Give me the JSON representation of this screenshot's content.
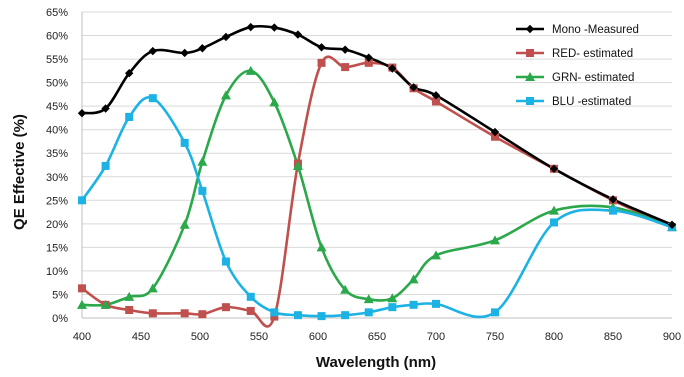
{
  "chart_data": {
    "type": "line",
    "xlabel": "Wavelength (nm)",
    "ylabel": "QE Effective (%)",
    "xlim": [
      400,
      900
    ],
    "ylim": [
      0,
      65
    ],
    "x_ticks": [
      "400",
      "450",
      "500",
      "550",
      "600",
      "650",
      "700",
      "750",
      "800",
      "850",
      "900"
    ],
    "y_ticks": [
      "0%",
      "5%",
      "10%",
      "15%",
      "20%",
      "25%",
      "30%",
      "35%",
      "40%",
      "45%",
      "50%",
      "55%",
      "60%",
      "65%"
    ],
    "grid": "horizontal",
    "legend_position": "top-right",
    "series": [
      {
        "name": "Mono -Measured",
        "color": "#000000",
        "marker": "diamond",
        "x": [
          400,
          420,
          440,
          460,
          487,
          502,
          522,
          543,
          563,
          583,
          603,
          623,
          643,
          663,
          681,
          700,
          750,
          800,
          850,
          900
        ],
        "y": [
          43.5,
          44.5,
          52,
          56.7,
          56.3,
          57.3,
          59.7,
          61.8,
          61.7,
          60.2,
          57.5,
          57,
          55.3,
          53,
          49,
          47.3,
          39.5,
          31.7,
          25.2,
          19.8
        ]
      },
      {
        "name": "RED- estimated",
        "color": "#c0504d",
        "marker": "square",
        "x": [
          400,
          420,
          440,
          460,
          487,
          502,
          522,
          543,
          563,
          583,
          603,
          623,
          643,
          663,
          681,
          700,
          750,
          800,
          850,
          900
        ],
        "y": [
          6.3,
          2.8,
          1.7,
          1.0,
          1.0,
          0.8,
          2.3,
          1.5,
          0.3,
          32.8,
          54.2,
          53.3,
          54.2,
          53.2,
          48.8,
          46,
          38.5,
          31.7,
          25,
          19.3
        ]
      },
      {
        "name": "GRN- estimated",
        "color": "#2aa84a",
        "marker": "triangle",
        "x": [
          400,
          420,
          440,
          460,
          487,
          502,
          522,
          543,
          563,
          583,
          603,
          623,
          643,
          663,
          681,
          700,
          750,
          800,
          850,
          900
        ],
        "y": [
          2.8,
          2.8,
          4.5,
          6.3,
          19.8,
          33.2,
          47.3,
          52.5,
          45.8,
          32.3,
          15,
          6,
          4,
          4.2,
          8.2,
          13.3,
          16.5,
          22.8,
          23.5,
          19.3
        ]
      },
      {
        "name": "BLU -estimated",
        "color": "#1cb2e4",
        "marker": "square",
        "x": [
          400,
          420,
          440,
          460,
          487,
          502,
          522,
          543,
          563,
          583,
          603,
          623,
          643,
          663,
          681,
          700,
          750,
          800,
          850,
          900
        ],
        "y": [
          25,
          32.3,
          42.7,
          46.7,
          37.2,
          27,
          12,
          4.5,
          1.2,
          0.6,
          0.4,
          0.6,
          1.2,
          2.3,
          2.8,
          3,
          1.2,
          20.3,
          22.8,
          19.3
        ]
      }
    ]
  }
}
